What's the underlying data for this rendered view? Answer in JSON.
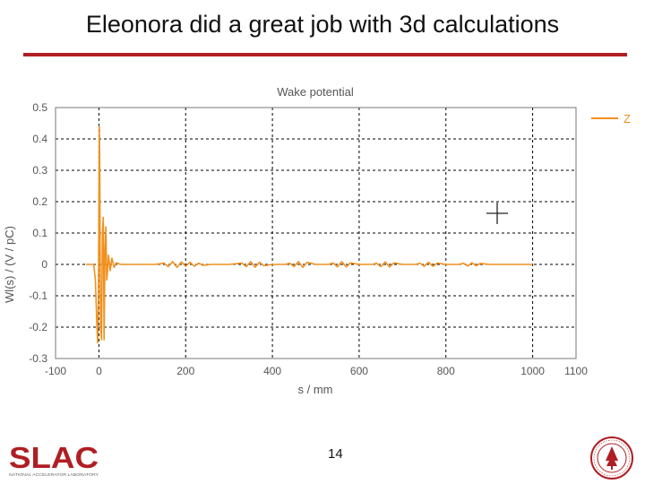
{
  "slide": {
    "title": "Eleonora did a great job with 3d calculations",
    "page_number": "14"
  },
  "logos": {
    "slac_text": "SLAC",
    "slac_subtext": "NATIONAL ACCELERATOR LABORATORY",
    "seal_icon": "stanford-seal-icon"
  },
  "colors": {
    "title_rule": "#b01e23",
    "series": "#f0901e",
    "grid": "#000000"
  },
  "chart_data": {
    "type": "line",
    "title": "Wake potential",
    "xlabel": "s / mm",
    "ylabel": "Wl(s) / (V / pC)",
    "xlim": [
      -100,
      1100
    ],
    "ylim": [
      -0.3,
      0.5
    ],
    "xticks": [
      -100,
      0,
      200,
      400,
      600,
      800,
      1000,
      1100
    ],
    "xtick_labels": [
      "-100",
      "0",
      "200",
      "400",
      "600",
      "800",
      "1000",
      "1100"
    ],
    "yticks": [
      -0.3,
      -0.2,
      -0.1,
      0,
      0.1,
      0.2,
      0.3,
      0.4,
      0.5
    ],
    "ytick_labels": [
      "-0.3",
      "-0.2",
      "-0.1",
      "0",
      "0.1",
      "0.2",
      "0.3",
      "0.4",
      "0.5"
    ],
    "grid": "dashed",
    "legend_position": "top-right outside",
    "series": [
      {
        "name": "Z",
        "x": [
          -30,
          -12,
          -8,
          -5,
          -3,
          -1,
          0,
          1,
          2,
          3,
          4,
          6,
          8,
          10,
          12,
          14,
          16,
          18,
          20,
          22,
          26,
          30,
          35,
          40,
          50,
          60,
          80,
          100,
          130,
          150,
          160,
          170,
          180,
          190,
          200,
          210,
          220,
          230,
          240,
          260,
          300,
          330,
          340,
          350,
          360,
          370,
          380,
          400,
          430,
          440,
          450,
          460,
          470,
          480,
          500,
          530,
          540,
          550,
          560,
          570,
          580,
          600,
          630,
          640,
          650,
          660,
          670,
          680,
          700,
          730,
          740,
          750,
          760,
          770,
          780,
          800,
          830,
          840,
          850,
          860,
          870,
          880,
          900,
          960,
          1000
        ],
        "y": [
          0,
          0,
          -0.05,
          -0.18,
          -0.25,
          -0.1,
          0.2,
          0.44,
          0.3,
          -0.05,
          -0.2,
          -0.24,
          0.1,
          0.15,
          -0.24,
          0.05,
          0.12,
          -0.05,
          -0.02,
          0.03,
          -0.02,
          0.02,
          -0.01,
          0.005,
          0,
          0,
          0,
          0,
          0,
          0.004,
          -0.007,
          0.009,
          -0.009,
          0.008,
          -0.006,
          0.007,
          -0.006,
          0.004,
          -0.003,
          0,
          0,
          0.004,
          -0.007,
          0.009,
          -0.009,
          0.007,
          -0.004,
          0,
          0,
          0.004,
          -0.007,
          0.009,
          -0.009,
          0.007,
          0,
          0,
          0.005,
          -0.008,
          0.009,
          -0.008,
          0.005,
          0,
          0,
          0.004,
          -0.007,
          0.008,
          -0.008,
          0.005,
          0,
          0,
          0.004,
          -0.006,
          0.007,
          -0.006,
          0.004,
          0,
          0,
          0.004,
          -0.005,
          0.005,
          -0.004,
          0.003,
          0,
          0,
          0
        ]
      }
    ]
  }
}
